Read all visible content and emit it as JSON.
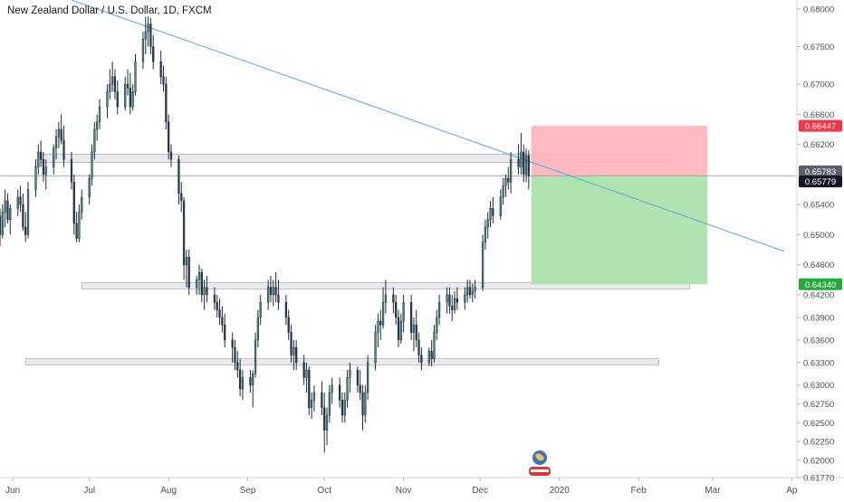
{
  "header": {
    "symbol_title": "New Zealand Dollar / U.S. Dollar, 1D, FXCM"
  },
  "colors": {
    "bull": "#3e8e7e",
    "bear": "#263c57",
    "trendline": "#5aa6e6",
    "zone_fill": "#e0e3eb",
    "zone_stroke": "#9598a1",
    "stop_fill": "#ffb3b8",
    "target_fill": "#a6e0a6",
    "stop_badge": "#f23645",
    "target_badge": "#22ab3b",
    "price_badge": "#131722",
    "axis_text": "#4a4e59"
  },
  "chart_data": {
    "type": "candlestick",
    "title": "New Zealand Dollar / U.S. Dollar, 1D, FXCM",
    "x_range": [
      "2019-05-27",
      "2020-04-03"
    ],
    "y_range": [
      0.6177,
      0.6812
    ],
    "x_tick_labels": [
      {
        "date": "2019-06-01",
        "label": "Jun"
      },
      {
        "date": "2019-07-01",
        "label": "Jul"
      },
      {
        "date": "2019-08-01",
        "label": "Aug"
      },
      {
        "date": "2019-09-01",
        "label": "Sep"
      },
      {
        "date": "2019-10-01",
        "label": "Oct"
      },
      {
        "date": "2019-11-01",
        "label": "Nov"
      },
      {
        "date": "2019-12-01",
        "label": "Dec"
      },
      {
        "date": "2020-01-01",
        "label": "2020"
      },
      {
        "date": "2020-02-01",
        "label": "Feb"
      },
      {
        "date": "2020-03-01",
        "label": "Mar"
      },
      {
        "date": "2020-04-01",
        "label": "Ap"
      }
    ],
    "y_tick_labels": [
      "0.68000",
      "0.67500",
      "0.67000",
      "0.66600",
      "0.66200",
      "0.65400",
      "0.65000",
      "0.64600",
      "0.64200",
      "0.63900",
      "0.63600",
      "0.63300",
      "0.63000",
      "0.62750",
      "0.62500",
      "0.62250",
      "0.62000",
      "0.61770"
    ],
    "price_labels": [
      {
        "value": 0.66447,
        "label": "0.66447",
        "kind": "stop"
      },
      {
        "value": 0.65783,
        "label": "0.65783",
        "kind": "current"
      },
      {
        "value": 0.65779,
        "label": "0.65779",
        "kind": "last"
      },
      {
        "value": 0.6434,
        "label": "0.64340",
        "kind": "target"
      }
    ],
    "candles": [
      [
        "2019-05-27",
        0.6525,
        0.6535,
        0.6485,
        0.65
      ],
      [
        "2019-05-28",
        0.65,
        0.654,
        0.6495,
        0.653
      ],
      [
        "2019-05-29",
        0.653,
        0.656,
        0.651,
        0.6545
      ],
      [
        "2019-05-30",
        0.6545,
        0.6555,
        0.6515,
        0.652
      ],
      [
        "2019-05-31",
        0.652,
        0.654,
        0.65,
        0.6535
      ],
      [
        "2019-06-03",
        0.6535,
        0.656,
        0.6525,
        0.655
      ],
      [
        "2019-06-04",
        0.655,
        0.6565,
        0.653,
        0.654
      ],
      [
        "2019-06-05",
        0.654,
        0.6555,
        0.6505,
        0.651
      ],
      [
        "2019-06-06",
        0.651,
        0.653,
        0.649,
        0.65
      ],
      [
        "2019-06-07",
        0.65,
        0.657,
        0.6495,
        0.656
      ],
      [
        "2019-06-10",
        0.656,
        0.66,
        0.655,
        0.659
      ],
      [
        "2019-06-11",
        0.659,
        0.662,
        0.658,
        0.661
      ],
      [
        "2019-06-12",
        0.661,
        0.6625,
        0.659,
        0.66
      ],
      [
        "2019-06-13",
        0.66,
        0.661,
        0.657,
        0.658
      ],
      [
        "2019-06-14",
        0.658,
        0.66,
        0.656,
        0.659
      ],
      [
        "2019-06-17",
        0.659,
        0.662,
        0.658,
        0.6615
      ],
      [
        "2019-06-18",
        0.6615,
        0.664,
        0.66,
        0.663
      ],
      [
        "2019-06-19",
        0.663,
        0.665,
        0.6615,
        0.664
      ],
      [
        "2019-06-20",
        0.664,
        0.666,
        0.662,
        0.6625
      ],
      [
        "2019-06-21",
        0.6625,
        0.6645,
        0.659,
        0.66
      ],
      [
        "2019-06-24",
        0.66,
        0.661,
        0.656,
        0.657
      ],
      [
        "2019-06-25",
        0.657,
        0.658,
        0.65,
        0.6515
      ],
      [
        "2019-06-26",
        0.6515,
        0.653,
        0.649,
        0.6495
      ],
      [
        "2019-06-27",
        0.6495,
        0.654,
        0.649,
        0.653
      ],
      [
        "2019-06-28",
        0.653,
        0.656,
        0.652,
        0.655
      ],
      [
        "2019-07-01",
        0.655,
        0.658,
        0.654,
        0.6575
      ],
      [
        "2019-07-02",
        0.6575,
        0.662,
        0.6565,
        0.661
      ],
      [
        "2019-07-03",
        0.661,
        0.665,
        0.66,
        0.664
      ],
      [
        "2019-07-04",
        0.664,
        0.666,
        0.6625,
        0.665
      ],
      [
        "2019-07-05",
        0.665,
        0.668,
        0.664,
        0.667
      ],
      [
        "2019-07-08",
        0.667,
        0.67,
        0.6655,
        0.669
      ],
      [
        "2019-07-09",
        0.669,
        0.672,
        0.668,
        0.67
      ],
      [
        "2019-07-10",
        0.67,
        0.673,
        0.669,
        0.671
      ],
      [
        "2019-07-11",
        0.671,
        0.672,
        0.668,
        0.669
      ],
      [
        "2019-07-12",
        0.669,
        0.6705,
        0.666,
        0.667
      ],
      [
        "2019-07-15",
        0.667,
        0.671,
        0.6665,
        0.67
      ],
      [
        "2019-07-16",
        0.67,
        0.672,
        0.6685,
        0.6695
      ],
      [
        "2019-07-17",
        0.6695,
        0.6715,
        0.666,
        0.667
      ],
      [
        "2019-07-18",
        0.667,
        0.67,
        0.6665,
        0.669
      ],
      [
        "2019-07-19",
        0.669,
        0.674,
        0.6685,
        0.673
      ],
      [
        "2019-07-22",
        0.673,
        0.677,
        0.672,
        0.676
      ],
      [
        "2019-07-23",
        0.676,
        0.679,
        0.674,
        0.677
      ],
      [
        "2019-07-24",
        0.677,
        0.679,
        0.675,
        0.678
      ],
      [
        "2019-07-25",
        0.678,
        0.6788,
        0.674,
        0.675
      ],
      [
        "2019-07-26",
        0.675,
        0.6765,
        0.672,
        0.673
      ],
      [
        "2019-07-29",
        0.673,
        0.6745,
        0.67,
        0.671
      ],
      [
        "2019-07-30",
        0.671,
        0.6725,
        0.669,
        0.67
      ],
      [
        "2019-07-31",
        0.67,
        0.671,
        0.664,
        0.665
      ],
      [
        "2019-08-01",
        0.665,
        0.666,
        0.66,
        0.661
      ],
      [
        "2019-08-02",
        0.661,
        0.662,
        0.659,
        0.66
      ],
      [
        "2019-08-05",
        0.66,
        0.6605,
        0.654,
        0.6555
      ],
      [
        "2019-08-06",
        0.6555,
        0.657,
        0.653,
        0.6545
      ],
      [
        "2019-08-07",
        0.6545,
        0.655,
        0.644,
        0.646
      ],
      [
        "2019-08-08",
        0.646,
        0.648,
        0.643,
        0.647
      ],
      [
        "2019-08-09",
        0.647,
        0.648,
        0.642,
        0.643
      ],
      [
        "2019-08-12",
        0.643,
        0.6445,
        0.642,
        0.644
      ],
      [
        "2019-08-13",
        0.644,
        0.646,
        0.642,
        0.645
      ],
      [
        "2019-08-14",
        0.645,
        0.6455,
        0.641,
        0.642
      ],
      [
        "2019-08-15",
        0.642,
        0.644,
        0.64,
        0.643
      ],
      [
        "2019-08-16",
        0.643,
        0.6445,
        0.641,
        0.642
      ],
      [
        "2019-08-19",
        0.642,
        0.643,
        0.64,
        0.641
      ],
      [
        "2019-08-20",
        0.641,
        0.642,
        0.639,
        0.64
      ],
      [
        "2019-08-21",
        0.64,
        0.6415,
        0.638,
        0.639
      ],
      [
        "2019-08-22",
        0.639,
        0.6405,
        0.637,
        0.638
      ],
      [
        "2019-08-23",
        0.638,
        0.6395,
        0.635,
        0.636
      ],
      [
        "2019-08-26",
        0.636,
        0.637,
        0.633,
        0.635
      ],
      [
        "2019-08-27",
        0.635,
        0.636,
        0.632,
        0.633
      ],
      [
        "2019-08-28",
        0.633,
        0.6345,
        0.631,
        0.632
      ],
      [
        "2019-08-29",
        0.632,
        0.6335,
        0.6285,
        0.6295
      ],
      [
        "2019-08-30",
        0.6295,
        0.632,
        0.628,
        0.631
      ],
      [
        "2019-09-02",
        0.631,
        0.632,
        0.629,
        0.63
      ],
      [
        "2019-09-03",
        0.63,
        0.632,
        0.627,
        0.6315
      ],
      [
        "2019-09-04",
        0.6315,
        0.637,
        0.631,
        0.636
      ],
      [
        "2019-09-05",
        0.636,
        0.64,
        0.635,
        0.639
      ],
      [
        "2019-09-06",
        0.639,
        0.642,
        0.638,
        0.641
      ],
      [
        "2019-09-09",
        0.641,
        0.644,
        0.64,
        0.643
      ],
      [
        "2019-09-10",
        0.643,
        0.6445,
        0.641,
        0.642
      ],
      [
        "2019-09-11",
        0.642,
        0.644,
        0.6405,
        0.643
      ],
      [
        "2019-09-12",
        0.643,
        0.645,
        0.641,
        0.642
      ],
      [
        "2019-09-13",
        0.642,
        0.644,
        0.64,
        0.641
      ],
      [
        "2019-09-16",
        0.641,
        0.642,
        0.638,
        0.639
      ],
      [
        "2019-09-17",
        0.639,
        0.64,
        0.636,
        0.637
      ],
      [
        "2019-09-18",
        0.637,
        0.638,
        0.633,
        0.634
      ],
      [
        "2019-09-19",
        0.634,
        0.636,
        0.632,
        0.635
      ],
      [
        "2019-09-20",
        0.635,
        0.636,
        0.632,
        0.633
      ],
      [
        "2019-09-23",
        0.633,
        0.634,
        0.63,
        0.631
      ],
      [
        "2019-09-24",
        0.631,
        0.633,
        0.629,
        0.632
      ],
      [
        "2019-09-25",
        0.632,
        0.6325,
        0.626,
        0.627
      ],
      [
        "2019-09-26",
        0.627,
        0.629,
        0.6255,
        0.628
      ],
      [
        "2019-09-27",
        0.628,
        0.63,
        0.6265,
        0.629
      ],
      [
        "2019-09-30",
        0.629,
        0.6305,
        0.626,
        0.627
      ],
      [
        "2019-10-01",
        0.627,
        0.629,
        0.621,
        0.624
      ],
      [
        "2019-10-02",
        0.624,
        0.627,
        0.622,
        0.626
      ],
      [
        "2019-10-03",
        0.626,
        0.63,
        0.625,
        0.629
      ],
      [
        "2019-10-04",
        0.629,
        0.631,
        0.6275,
        0.63
      ],
      [
        "2019-10-07",
        0.63,
        0.631,
        0.627,
        0.628
      ],
      [
        "2019-10-08",
        0.628,
        0.629,
        0.625,
        0.626
      ],
      [
        "2019-10-09",
        0.626,
        0.629,
        0.625,
        0.628
      ],
      [
        "2019-10-10",
        0.628,
        0.632,
        0.627,
        0.631
      ],
      [
        "2019-10-11",
        0.631,
        0.633,
        0.629,
        0.632
      ],
      [
        "2019-10-14",
        0.632,
        0.6325,
        0.629,
        0.63
      ],
      [
        "2019-10-15",
        0.63,
        0.632,
        0.628,
        0.629
      ],
      [
        "2019-10-16",
        0.629,
        0.63,
        0.624,
        0.626
      ],
      [
        "2019-10-17",
        0.626,
        0.63,
        0.625,
        0.629
      ],
      [
        "2019-10-18",
        0.629,
        0.634,
        0.628,
        0.633
      ],
      [
        "2019-10-21",
        0.633,
        0.638,
        0.632,
        0.637
      ],
      [
        "2019-10-22",
        0.637,
        0.6395,
        0.635,
        0.6385
      ],
      [
        "2019-10-23",
        0.6385,
        0.64,
        0.636,
        0.638
      ],
      [
        "2019-10-24",
        0.638,
        0.643,
        0.6375,
        0.641
      ],
      [
        "2019-10-25",
        0.641,
        0.644,
        0.6395,
        0.642
      ],
      [
        "2019-10-28",
        0.642,
        0.643,
        0.6395,
        0.641
      ],
      [
        "2019-10-29",
        0.641,
        0.642,
        0.638,
        0.639
      ],
      [
        "2019-10-30",
        0.639,
        0.64,
        0.635,
        0.636
      ],
      [
        "2019-10-31",
        0.636,
        0.6395,
        0.6355,
        0.6385
      ],
      [
        "2019-11-01",
        0.6385,
        0.642,
        0.637,
        0.641
      ],
      [
        "2019-11-04",
        0.641,
        0.642,
        0.636,
        0.637
      ],
      [
        "2019-11-05",
        0.637,
        0.639,
        0.6345,
        0.638
      ],
      [
        "2019-11-06",
        0.638,
        0.64,
        0.635,
        0.636
      ],
      [
        "2019-11-07",
        0.636,
        0.637,
        0.633,
        0.634
      ],
      [
        "2019-11-08",
        0.634,
        0.635,
        0.632,
        0.633
      ],
      [
        "2019-11-11",
        0.633,
        0.635,
        0.6325,
        0.6345
      ],
      [
        "2019-11-12",
        0.6345,
        0.636,
        0.6325,
        0.6335
      ],
      [
        "2019-11-13",
        0.6335,
        0.638,
        0.633,
        0.637
      ],
      [
        "2019-11-14",
        0.637,
        0.64,
        0.636,
        0.639
      ],
      [
        "2019-11-15",
        0.639,
        0.642,
        0.638,
        0.641
      ],
      [
        "2019-11-18",
        0.641,
        0.643,
        0.6395,
        0.642
      ],
      [
        "2019-11-19",
        0.642,
        0.643,
        0.6395,
        0.6405
      ],
      [
        "2019-11-20",
        0.6405,
        0.642,
        0.6385,
        0.64
      ],
      [
        "2019-11-21",
        0.64,
        0.6425,
        0.6395,
        0.6415
      ],
      [
        "2019-11-22",
        0.6415,
        0.643,
        0.64,
        0.641
      ],
      [
        "2019-11-25",
        0.641,
        0.643,
        0.64,
        0.642
      ],
      [
        "2019-11-26",
        0.642,
        0.644,
        0.641,
        0.643
      ],
      [
        "2019-11-27",
        0.643,
        0.644,
        0.6415,
        0.642
      ],
      [
        "2019-11-28",
        0.642,
        0.6435,
        0.641,
        0.6425
      ],
      [
        "2019-11-29",
        0.6425,
        0.644,
        0.6415,
        0.643
      ],
      [
        "2019-12-02",
        0.643,
        0.65,
        0.6425,
        0.649
      ],
      [
        "2019-12-03",
        0.649,
        0.652,
        0.648,
        0.651
      ],
      [
        "2019-12-04",
        0.651,
        0.653,
        0.6495,
        0.652
      ],
      [
        "2019-12-05",
        0.652,
        0.6545,
        0.651,
        0.6535
      ],
      [
        "2019-12-06",
        0.6535,
        0.655,
        0.6515,
        0.6525
      ],
      [
        "2019-12-09",
        0.6525,
        0.656,
        0.652,
        0.655
      ],
      [
        "2019-12-10",
        0.655,
        0.6575,
        0.654,
        0.6565
      ],
      [
        "2019-12-11",
        0.6565,
        0.658,
        0.655,
        0.6575
      ],
      [
        "2019-12-12",
        0.6575,
        0.659,
        0.656,
        0.657
      ],
      [
        "2019-12-13",
        0.657,
        0.661,
        0.6555,
        0.66
      ],
      [
        "2019-12-16",
        0.66,
        0.662,
        0.658,
        0.659
      ],
      [
        "2019-12-17",
        0.659,
        0.6635,
        0.658,
        0.661
      ],
      [
        "2019-12-18",
        0.661,
        0.662,
        0.657,
        0.658
      ],
      [
        "2019-12-19",
        0.658,
        0.6615,
        0.657,
        0.6605
      ],
      [
        "2019-12-20",
        0.6605,
        0.6612,
        0.656,
        0.6578
      ]
    ],
    "horizontal_zones": [
      {
        "start": "2019-06-12",
        "end": "2020-02-13",
        "low": 0.6596,
        "high": 0.6607
      },
      {
        "start": "2019-06-28",
        "end": "2020-02-21",
        "low": 0.6428,
        "high": 0.6436
      },
      {
        "start": "2019-06-06",
        "end": "2020-02-09",
        "low": 0.6327,
        "high": 0.6335
      }
    ],
    "trendline": {
      "start": [
        "2019-06-24",
        0.6812
      ],
      "end": [
        "2020-03-29",
        0.6478
      ]
    },
    "position": {
      "start": "2019-12-21",
      "end": "2020-02-28",
      "entry": 0.65779,
      "stop": 0.66447,
      "target": 0.6434
    }
  }
}
